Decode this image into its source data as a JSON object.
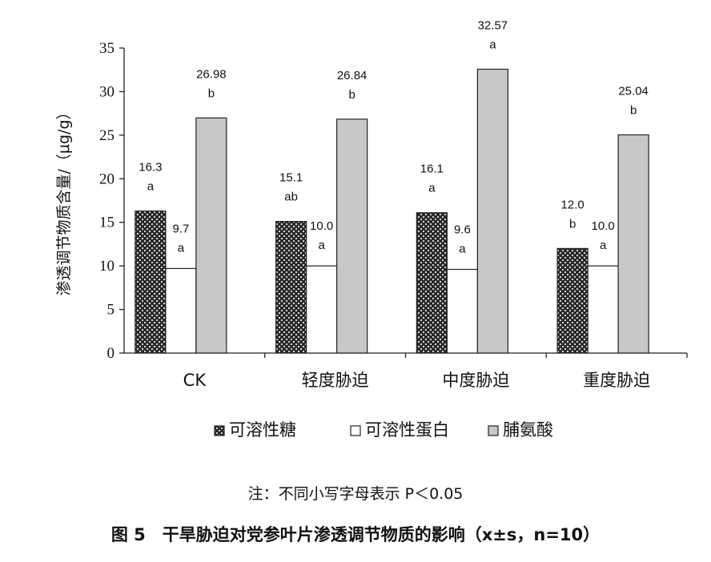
{
  "chart_data": {
    "type": "bar",
    "categories": [
      "CK",
      "轻度胁迫",
      "中度胁迫",
      "重度胁迫"
    ],
    "series": [
      {
        "name": "可溶性糖",
        "values": [
          16.3,
          15.1,
          16.1,
          12.0
        ],
        "labels": [
          "16.3",
          "15.1",
          "16.1",
          "12.0"
        ],
        "letters": [
          "a",
          "ab",
          "a",
          "b"
        ],
        "pattern": "checker",
        "color": "#2b2b2b"
      },
      {
        "name": "可溶性蛋白",
        "values": [
          9.7,
          10.0,
          9.6,
          10.0
        ],
        "labels": [
          "9.7",
          "10.0",
          "9.6",
          "10.0"
        ],
        "letters": [
          "a",
          "a",
          "a",
          "a"
        ],
        "pattern": "solid",
        "color": "#ffffff"
      },
      {
        "name": "脯氨酸",
        "values": [
          26.98,
          26.84,
          32.57,
          25.04
        ],
        "labels": [
          "26.98",
          "26.84",
          "32.57",
          "25.04"
        ],
        "letters": [
          "b",
          "b",
          "a",
          "b"
        ],
        "pattern": "solid",
        "color": "#c8c8c8"
      }
    ],
    "ylabel": "渗透调节物质含量/（μg/g）",
    "xlabel": "",
    "ylim": [
      0,
      35
    ],
    "yticks": [
      "0",
      "5",
      "10",
      "15",
      "20",
      "25",
      "30",
      "35"
    ],
    "grid": false,
    "legend_position": "bottom"
  },
  "note": "注：不同小写字母表示 P＜0.05",
  "caption": "图 5　干旱胁迫对党参叶片渗透调节物质的影响（x±s，n=10）"
}
